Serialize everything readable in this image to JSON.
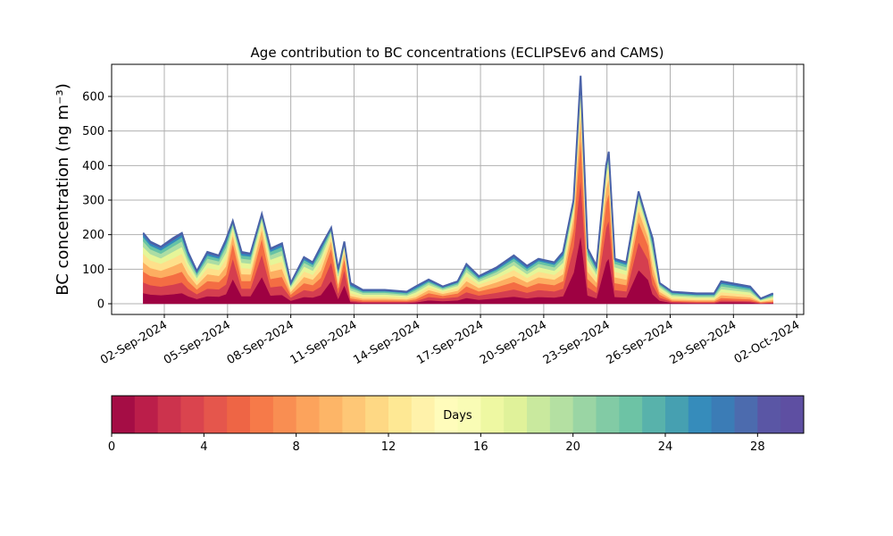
{
  "chart_data": [
    {
      "type": "area",
      "title": "Age contribution to BC concentrations (ECLIPSEv6 and CAMS)",
      "y_label": "BC concentration (ng m⁻³)",
      "x": [
        "2024-09-01T00:00",
        "2024-09-01T08:00",
        "2024-09-01T20:00",
        "2024-09-02T10:00",
        "2024-09-02T20:00",
        "2024-09-03T03:00",
        "2024-09-03T13:00",
        "2024-09-04T01:00",
        "2024-09-04T14:00",
        "2024-09-04T22:00",
        "2024-09-05T06:00",
        "2024-09-05T16:00",
        "2024-09-06T02:00",
        "2024-09-06T15:00",
        "2024-09-07T01:00",
        "2024-09-07T14:00",
        "2024-09-08T00:00",
        "2024-09-08T15:00",
        "2024-09-09T01:00",
        "2024-09-09T10:00",
        "2024-09-09T22:00",
        "2024-09-10T06:00",
        "2024-09-10T13:00",
        "2024-09-10T20:00",
        "2024-09-11T10:00",
        "2024-09-12T11:00",
        "2024-09-13T12:00",
        "2024-09-13T22:00",
        "2024-09-14T13:00",
        "2024-09-15T05:00",
        "2024-09-15T22:00",
        "2024-09-16T08:00",
        "2024-09-16T22:00",
        "2024-09-17T18:00",
        "2024-09-18T14:00",
        "2024-09-19T05:00",
        "2024-09-19T18:00",
        "2024-09-20T12:00",
        "2024-09-20T22:00",
        "2024-09-21T10:00",
        "2024-09-21T18:00",
        "2024-09-22T02:00",
        "2024-09-22T12:00",
        "2024-09-22T23:00",
        "2024-09-23T02:00",
        "2024-09-23T09:00",
        "2024-09-23T22:00",
        "2024-09-24T12:00",
        "2024-09-24T23:00",
        "2024-09-25T04:00",
        "2024-09-25T12:00",
        "2024-09-26T02:00",
        "2024-09-27T06:00",
        "2024-09-28T02:00",
        "2024-09-28T10:00",
        "2024-09-29T19:00",
        "2024-09-30T07:00",
        "2024-09-30T21:00"
      ],
      "series": [
        {
          "color": "#9e0142",
          "values": [
            31,
            27,
            25,
            28,
            31,
            22,
            14,
            22,
            21,
            28,
            72,
            22,
            22,
            78,
            24,
            26,
            9,
            20,
            18,
            25,
            66,
            15,
            54,
            5,
            3,
            3,
            3,
            4,
            10,
            8,
            10,
            17,
            12,
            16,
            21,
            16,
            20,
            18,
            22,
            90,
            198,
            24,
            16,
            120,
            132,
            20,
            18,
            98,
            69,
            28,
            9,
            3,
            2,
            2,
            5,
            4,
            1,
            2
          ]
        },
        {
          "color": "#d53e4f",
          "values": [
            31,
            27,
            25,
            28,
            31,
            22,
            14,
            22,
            21,
            28,
            60,
            22,
            22,
            65,
            24,
            26,
            9,
            20,
            18,
            25,
            55,
            15,
            45,
            5,
            3,
            3,
            3,
            4,
            10,
            8,
            10,
            17,
            12,
            16,
            21,
            16,
            20,
            18,
            22,
            75,
            165,
            24,
            16,
            100,
            110,
            20,
            18,
            81,
            58,
            28,
            9,
            3,
            2,
            2,
            5,
            4,
            1,
            2
          ]
        },
        {
          "color": "#f46d43",
          "values": [
            31,
            27,
            25,
            28,
            31,
            22,
            14,
            22,
            21,
            28,
            43,
            22,
            22,
            47,
            24,
            26,
            9,
            20,
            18,
            25,
            40,
            15,
            32,
            6,
            4,
            4,
            3,
            5,
            11,
            7,
            10,
            17,
            12,
            16,
            21,
            16,
            20,
            18,
            22,
            54,
            119,
            24,
            16,
            72,
            79,
            20,
            18,
            59,
            41,
            28,
            9,
            3,
            3,
            3,
            7,
            5,
            2,
            3
          ]
        },
        {
          "color": "#fdae61",
          "values": [
            27,
            23,
            21,
            25,
            27,
            20,
            12,
            20,
            18,
            24,
            24,
            20,
            19,
            26,
            21,
            23,
            8,
            18,
            16,
            21,
            22,
            13,
            18,
            7,
            5,
            5,
            4,
            6,
            9,
            6,
            8,
            15,
            10,
            14,
            18,
            14,
            17,
            16,
            20,
            30,
            66,
            21,
            14,
            40,
            44,
            17,
            16,
            32,
            23,
            25,
            8,
            4,
            4,
            4,
            8,
            6,
            2,
            4
          ]
        },
        {
          "color": "#fee08b",
          "values": [
            25,
            22,
            20,
            23,
            25,
            18,
            11,
            18,
            17,
            22,
            14,
            18,
            17,
            16,
            19,
            21,
            7,
            16,
            14,
            20,
            13,
            12,
            11,
            8,
            6,
            6,
            5,
            7,
            8,
            6,
            8,
            14,
            10,
            12,
            17,
            13,
            16,
            14,
            18,
            18,
            40,
            19,
            13,
            24,
            26,
            16,
            14,
            20,
            14,
            23,
            7,
            5,
            4,
            4,
            9,
            7,
            2,
            4
          ]
        },
        {
          "color": "#e6f598",
          "values": [
            20,
            18,
            16,
            19,
            20,
            15,
            10,
            15,
            14,
            18,
            10,
            15,
            14,
            10,
            16,
            18,
            6,
            14,
            12,
            16,
            9,
            10,
            7,
            8,
            6,
            6,
            5,
            7,
            7,
            5,
            6,
            12,
            8,
            10,
            14,
            11,
            13,
            12,
            15,
            12,
            26,
            16,
            11,
            16,
            18,
            13,
            12,
            13,
            9,
            19,
            6,
            5,
            4,
            4,
            9,
            7,
            2,
            4
          ]
        },
        {
          "color": "#abdda4",
          "values": [
            16,
            14,
            13,
            15,
            16,
            12,
            8,
            12,
            11,
            15,
            7,
            12,
            12,
            8,
            13,
            14,
            5,
            11,
            10,
            13,
            7,
            8,
            5,
            7,
            5,
            5,
            4,
            6,
            6,
            4,
            5,
            9,
            6,
            8,
            11,
            9,
            10,
            10,
            12,
            9,
            20,
            13,
            9,
            12,
            13,
            10,
            10,
            10,
            7,
            15,
            5,
            4,
            4,
            4,
            8,
            6,
            2,
            4
          ]
        },
        {
          "color": "#66c2a5",
          "values": [
            12,
            11,
            10,
            11,
            12,
            9,
            6,
            9,
            8,
            11,
            5,
            9,
            9,
            5,
            10,
            11,
            4,
            8,
            7,
            10,
            4,
            6,
            4,
            6,
            4,
            4,
            4,
            5,
            4,
            3,
            4,
            7,
            5,
            6,
            8,
            7,
            8,
            7,
            9,
            6,
            13,
            10,
            7,
            8,
            9,
            8,
            7,
            6,
            5,
            11,
            4,
            4,
            3,
            3,
            7,
            5,
            1,
            3
          ]
        },
        {
          "color": "#3288bd",
          "values": [
            8,
            7,
            7,
            8,
            8,
            6,
            4,
            6,
            6,
            7,
            3,
            6,
            6,
            3,
            6,
            7,
            2,
            5,
            5,
            7,
            2,
            4,
            2,
            5,
            2,
            2,
            2,
            4,
            3,
            2,
            3,
            5,
            3,
            4,
            6,
            5,
            4,
            5,
            6,
            3,
            7,
            6,
            5,
            4,
            5,
            4,
            5,
            3,
            2,
            8,
            2,
            2,
            2,
            2,
            4,
            4,
            1,
            2
          ]
        },
        {
          "color": "#5e4fa2",
          "values": [
            4,
            4,
            3,
            5,
            4,
            4,
            2,
            4,
            3,
            4,
            2,
            4,
            2,
            2,
            3,
            3,
            1,
            3,
            2,
            3,
            2,
            2,
            2,
            3,
            2,
            2,
            2,
            2,
            2,
            1,
            1,
            2,
            2,
            3,
            3,
            3,
            2,
            2,
            4,
            3,
            6,
            3,
            3,
            4,
            4,
            2,
            2,
            3,
            2,
            5,
            1,
            2,
            2,
            2,
            3,
            2,
            1,
            2
          ]
        }
      ],
      "outline_color": "#4a62a8",
      "xlim": [
        "2024-08-30T12:00",
        "2024-10-02T08:00"
      ],
      "xticks": [
        {
          "value": "2024-09-02",
          "label": "02-Sep-2024"
        },
        {
          "value": "2024-09-05",
          "label": "05-Sep-2024"
        },
        {
          "value": "2024-09-08",
          "label": "08-Sep-2024"
        },
        {
          "value": "2024-09-11",
          "label": "11-Sep-2024"
        },
        {
          "value": "2024-09-14",
          "label": "14-Sep-2024"
        },
        {
          "value": "2024-09-17",
          "label": "17-Sep-2024"
        },
        {
          "value": "2024-09-20",
          "label": "20-Sep-2024"
        },
        {
          "value": "2024-09-23",
          "label": "23-Sep-2024"
        },
        {
          "value": "2024-09-26",
          "label": "26-Sep-2024"
        },
        {
          "value": "2024-09-29",
          "label": "29-Sep-2024"
        },
        {
          "value": "2024-10-02",
          "label": "02-Oct-2024"
        }
      ],
      "ylim": [
        -31,
        693
      ],
      "yticks": [
        0,
        100,
        200,
        300,
        400,
        500,
        600
      ],
      "grid": true
    },
    {
      "type": "colorbar",
      "label": "Days",
      "colors": [
        "#a50d45",
        "#bb1e4a",
        "#cc334d",
        "#da444e",
        "#e5564c",
        "#ee6545",
        "#f67a49",
        "#f98e52",
        "#fca35c",
        "#fdb567",
        "#fec776",
        "#fed884",
        "#fee894",
        "#fff2aa",
        "#fffcbb",
        "#f9fcb5",
        "#eef8a2",
        "#e0f29a",
        "#c9e99e",
        "#b4e0a2",
        "#9ad5a4",
        "#82cba5",
        "#6dc3a5",
        "#58b2ab",
        "#46a0b1",
        "#368cbb",
        "#3b7cb6",
        "#4c6bae",
        "#5a56a5",
        "#5e4fa2"
      ],
      "xlim": [
        0,
        30
      ],
      "xticks": [
        0,
        4,
        8,
        12,
        16,
        20,
        24,
        28
      ]
    }
  ]
}
